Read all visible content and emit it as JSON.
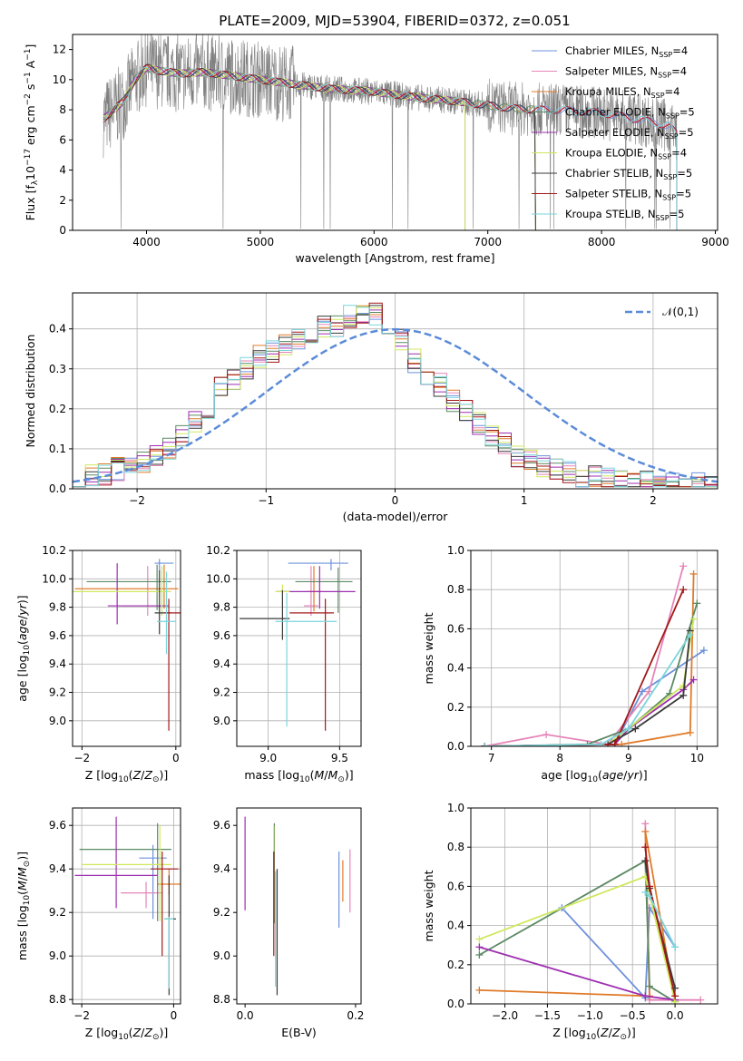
{
  "figure_title": "PLATE=2009, MJD=53904, FIBERID=0372, z=0.051",
  "models": [
    {
      "name": "Chabrier MILES",
      "nssp": "4",
      "color": "#6d90dc"
    },
    {
      "name": "Salpeter MILES",
      "nssp": "4",
      "color": "#e585b9"
    },
    {
      "name": "Kroupa MILES",
      "nssp": "4",
      "color": "#e07b2a"
    },
    {
      "name": "Chabrier ELODIE",
      "nssp": "5",
      "color": "#5c8a63"
    },
    {
      "name": "Salpeter ELODIE",
      "nssp": "5",
      "color": "#9d2fb0"
    },
    {
      "name": "Kroupa ELODIE",
      "nssp": "4",
      "color": "#cfe85e"
    },
    {
      "name": "Chabrier STELIB",
      "nssp": "5",
      "color": "#3a3a3a"
    },
    {
      "name": "Salpeter STELIB",
      "nssp": "5",
      "color": "#a31818"
    },
    {
      "name": "Kroupa STELIB",
      "nssp": "5",
      "color": "#7ad6dc"
    }
  ],
  "data_color": "#808080",
  "chart_data": [
    {
      "id": "spectrum",
      "type": "line",
      "title": "PLATE=2009, MJD=53904, FIBERID=0372, z=0.051",
      "xlabel": "wavelength [Angstrom, rest frame]",
      "ylabel": "Flux [f_λ 10^-17 erg cm^-2 s^-1 A^-1]",
      "xlim": [
        3350,
        9020
      ],
      "ylim": [
        0,
        13
      ],
      "xticks": [
        4000,
        5000,
        6000,
        7000,
        8000,
        9000
      ],
      "yticks": [
        0,
        2,
        4,
        6,
        8,
        10,
        12
      ],
      "grid": false,
      "legend": "top-right",
      "continuum": {
        "x": [
          3620,
          3700,
          3800,
          3900,
          4000,
          4100,
          4300,
          4500,
          4800,
          5000,
          5300,
          5600,
          6000,
          6400,
          6800,
          7000,
          7200,
          7420,
          7600,
          8000,
          8300,
          8500,
          8600,
          8660
        ],
        "y": [
          7.4,
          7.9,
          8.6,
          10.0,
          10.8,
          10.6,
          10.4,
          10.5,
          10.2,
          10.0,
          9.7,
          9.4,
          9.2,
          8.8,
          8.5,
          8.3,
          8.1,
          8.0,
          8.0,
          7.8,
          7.4,
          7.1,
          6.9,
          6.4
        ]
      },
      "model_end_wavelengths": [
        8660,
        8660,
        7420,
        7420,
        6800,
        6800,
        7420,
        8660,
        8660
      ]
    },
    {
      "id": "residuals",
      "type": "histogram",
      "xlabel": "(data-model)/error",
      "ylabel": "Normed distribution",
      "xlim": [
        -2.5,
        2.5
      ],
      "ylim": [
        0,
        0.49
      ],
      "xticks": [
        -2,
        -1,
        0,
        1,
        2
      ],
      "yticks": [
        0.0,
        0.1,
        0.2,
        0.3,
        0.4
      ],
      "grid": true,
      "legend": "top-right",
      "reference_curve": "𝒩(0,1)",
      "bin_width": 0.1,
      "envelope": [
        0.02,
        0.025,
        0.03,
        0.035,
        0.04,
        0.05,
        0.055,
        0.06,
        0.065,
        0.07,
        0.08,
        0.1,
        0.115,
        0.13,
        0.15,
        0.17,
        0.2,
        0.225,
        0.25,
        0.27,
        0.29,
        0.3,
        0.32,
        0.33,
        0.345,
        0.355,
        0.365,
        0.375,
        0.38,
        0.39,
        0.4,
        0.405,
        0.41,
        0.42,
        0.43,
        0.44,
        0.45,
        0.44,
        0.42,
        0.4,
        0.375,
        0.35,
        0.32,
        0.3,
        0.28,
        0.26,
        0.24,
        0.22,
        0.2,
        0.18,
        0.165,
        0.15,
        0.13,
        0.11,
        0.095,
        0.08,
        0.07,
        0.06,
        0.055,
        0.05,
        0.045,
        0.04,
        0.035,
        0.03,
        0.028,
        0.025,
        0.022,
        0.02,
        0.018,
        0.016,
        0.015,
        0.015,
        0.014,
        0.013,
        0.012,
        0.011,
        0.01,
        0.01,
        0.01,
        0.01
      ]
    },
    {
      "id": "age-vs-Z",
      "type": "errorbar",
      "xlabel": "Z [log10(Z/Z⊙)]",
      "ylabel": "age [log10(age/yr)]",
      "xlim": [
        -2.2,
        0.1
      ],
      "ylim": [
        8.82,
        10.2
      ],
      "xticks": [
        -2,
        0
      ],
      "yticks": [
        9.0,
        9.2,
        9.4,
        9.6,
        9.8,
        10.0,
        10.2
      ],
      "grid": true,
      "points": [
        {
          "x": -0.35,
          "y": 10.11,
          "xerr": [
            0.1,
            0.3
          ],
          "yerr": [
            0.05,
            0.03
          ]
        },
        {
          "x": -0.6,
          "y": 9.81,
          "xerr": [
            0.55,
            0.3
          ],
          "yerr": [
            0.07,
            0.28
          ]
        },
        {
          "x": -0.25,
          "y": 9.93,
          "xerr": [
            1.9,
            0.3
          ],
          "yerr": [
            0.14,
            0.17
          ]
        },
        {
          "x": -0.4,
          "y": 9.98,
          "xerr": [
            1.5,
            0.3
          ],
          "yerr": [
            0.2,
            0.12
          ]
        },
        {
          "x": -1.25,
          "y": 9.81,
          "xerr": [
            0.2,
            1.1
          ],
          "yerr": [
            0.13,
            0.3
          ]
        },
        {
          "x": -0.3,
          "y": 9.91,
          "xerr": [
            1.9,
            0.2
          ],
          "yerr": [
            0.17,
            0.18
          ]
        },
        {
          "x": -0.35,
          "y": 9.76,
          "xerr": [
            0.1,
            0.25
          ],
          "yerr": [
            0.15,
            0.3
          ]
        },
        {
          "x": -0.15,
          "y": 9.76,
          "xerr": [
            0.1,
            0.3
          ],
          "yerr": [
            0.83,
            0.1
          ]
        },
        {
          "x": -0.2,
          "y": 9.7,
          "xerr": [
            0.2,
            0.2
          ],
          "yerr": [
            0.23,
            0.35
          ]
        }
      ]
    },
    {
      "id": "age-vs-mass",
      "type": "errorbar",
      "xlabel": "mass [log10(M/M⊙)]",
      "ylabel": "",
      "xlim": [
        8.78,
        9.65
      ],
      "ylim": [
        8.82,
        10.2
      ],
      "xticks": [
        9.0,
        9.5
      ],
      "yticks": [
        9.0,
        9.2,
        9.4,
        9.6,
        9.8,
        10.0,
        10.2
      ],
      "grid": true,
      "points": [
        {
          "x": 9.44,
          "y": 10.11,
          "xerr": [
            0.3,
            0.12
          ],
          "yerr": [
            0.05,
            0.03
          ]
        },
        {
          "x": 9.3,
          "y": 9.81,
          "xerr": [
            0.05,
            0.05
          ],
          "yerr": [
            0.07,
            0.28
          ]
        },
        {
          "x": 9.32,
          "y": 9.91,
          "xerr": [
            0.05,
            0.06
          ],
          "yerr": [
            0.14,
            0.18
          ]
        },
        {
          "x": 9.49,
          "y": 9.98,
          "xerr": [
            0.3,
            0.1
          ],
          "yerr": [
            0.22,
            0.1
          ]
        },
        {
          "x": 9.36,
          "y": 9.91,
          "xerr": [
            0.3,
            0.25
          ],
          "yerr": [
            0.12,
            0.18
          ]
        },
        {
          "x": 9.1,
          "y": 9.91,
          "xerr": [
            0.05,
            0.05
          ],
          "yerr": [
            0.12,
            0.05
          ]
        },
        {
          "x": 9.1,
          "y": 9.72,
          "xerr": [
            0.3,
            0.05
          ],
          "yerr": [
            0.15,
            0.2
          ]
        },
        {
          "x": 9.4,
          "y": 9.76,
          "xerr": [
            0.25,
            0.06
          ],
          "yerr": [
            0.83,
            0.1
          ]
        },
        {
          "x": 9.13,
          "y": 9.7,
          "xerr": [
            0.08,
            0.35
          ],
          "yerr": [
            0.74,
            0.2
          ]
        }
      ]
    },
    {
      "id": "weight-vs-age",
      "type": "line",
      "xlabel": "age [log10(age/yr)]",
      "ylabel": "mass weight",
      "xlim": [
        6.7,
        10.3
      ],
      "ylim": [
        0,
        1
      ],
      "xticks": [
        7,
        8,
        9,
        10
      ],
      "yticks": [
        0.0,
        0.2,
        0.4,
        0.6,
        0.8,
        1.0
      ],
      "grid": true,
      "series": [
        {
          "x": [
            6.9,
            8.8,
            9.2,
            10.1
          ],
          "y": [
            0.0,
            0.01,
            0.28,
            0.49
          ]
        },
        {
          "x": [
            6.9,
            7.8,
            8.7,
            9.3,
            9.8
          ],
          "y": [
            0.0,
            0.06,
            0.01,
            0.28,
            0.92
          ]
        },
        {
          "x": [
            6.9,
            8.9,
            9.9,
            9.95
          ],
          "y": [
            0.0,
            0.01,
            0.07,
            0.88
          ]
        },
        {
          "x": [
            6.9,
            8.4,
            9.0,
            9.6,
            10.0
          ],
          "y": [
            0.0,
            0.01,
            0.09,
            0.27,
            0.73
          ]
        },
        {
          "x": [
            6.9,
            8.8,
            9.0,
            9.8,
            9.95
          ],
          "y": [
            0.0,
            0.01,
            0.09,
            0.29,
            0.34
          ]
        },
        {
          "x": [
            6.9,
            8.7,
            9.8,
            9.95
          ],
          "y": [
            0.0,
            0.01,
            0.31,
            0.65
          ]
        },
        {
          "x": [
            6.9,
            8.7,
            9.1,
            9.8,
            9.9
          ],
          "y": [
            0.0,
            0.01,
            0.09,
            0.26,
            0.59
          ]
        },
        {
          "x": [
            6.9,
            8.8,
            9.8
          ],
          "y": [
            0.0,
            0.01,
            0.8
          ]
        },
        {
          "x": [
            6.9,
            8.6,
            9.0,
            9.9
          ],
          "y": [
            0.0,
            0.01,
            0.09,
            0.57
          ]
        }
      ]
    },
    {
      "id": "mass-vs-Z",
      "type": "errorbar",
      "xlabel": "Z [log10(Z/Z⊙)]",
      "ylabel": "mass [log10(M/M⊙)]",
      "xlim": [
        -2.2,
        0.15
      ],
      "ylim": [
        8.78,
        9.68
      ],
      "xticks": [
        -2,
        0
      ],
      "yticks": [
        8.8,
        9.0,
        9.2,
        9.4,
        9.6
      ],
      "grid": true,
      "points": [
        {
          "x": -0.45,
          "y": 9.45,
          "xerr": [
            0.3,
            0.3
          ],
          "yerr": [
            0.28,
            0.06
          ]
        },
        {
          "x": -0.6,
          "y": 9.29,
          "xerr": [
            0.55,
            0.35
          ],
          "yerr": [
            0.07,
            0.05
          ]
        },
        {
          "x": -0.1,
          "y": 9.33,
          "xerr": [
            0.25,
            0.25
          ],
          "yerr": [
            0.05,
            0.07
          ]
        },
        {
          "x": -0.35,
          "y": 9.49,
          "xerr": [
            1.7,
            0.3
          ],
          "yerr": [
            0.33,
            0.12
          ]
        },
        {
          "x": -1.25,
          "y": 9.37,
          "xerr": [
            0.9,
            0.9
          ],
          "yerr": [
            0.15,
            0.27
          ]
        },
        {
          "x": -0.3,
          "y": 9.42,
          "xerr": [
            1.7,
            0.25
          ],
          "yerr": [
            0.26,
            0.18
          ]
        },
        {
          "x": -0.1,
          "y": 9.17,
          "xerr": [
            0.1,
            0.15
          ],
          "yerr": [
            0.35,
            0.2
          ]
        },
        {
          "x": -0.25,
          "y": 9.4,
          "xerr": [
            0.25,
            0.35
          ],
          "yerr": [
            0.4,
            0.08
          ]
        },
        {
          "x": -0.1,
          "y": 9.17,
          "xerr": [
            0.1,
            0.1
          ],
          "yerr": [
            0.32,
            0.01
          ]
        }
      ]
    },
    {
      "id": "mass-vs-EBV",
      "type": "errorbar",
      "xlabel": "E(B-V)",
      "ylabel": "",
      "xlim": [
        -0.015,
        0.21
      ],
      "ylim": [
        8.78,
        9.68
      ],
      "xticks": [
        0.0,
        0.2
      ],
      "yticks": [
        8.8,
        9.0,
        9.2,
        9.4,
        9.6
      ],
      "grid": false,
      "points": [
        {
          "x": 0.17,
          "y": 9.36,
          "xerr": [
            0,
            0
          ],
          "yerr": [
            0.23,
            0.12
          ]
        },
        {
          "x": 0.19,
          "y": 9.29,
          "xerr": [
            0,
            0
          ],
          "yerr": [
            0.09,
            0.2
          ]
        },
        {
          "x": 0.177,
          "y": 9.33,
          "xerr": [
            0,
            0
          ],
          "yerr": [
            0.08,
            0.11
          ]
        },
        {
          "x": 0.053,
          "y": 9.45,
          "xerr": [
            0,
            0
          ],
          "yerr": [
            0.3,
            0.16
          ]
        },
        {
          "x": 0.0,
          "y": 9.42,
          "xerr": [
            0,
            0
          ],
          "yerr": [
            0.21,
            0.22
          ]
        },
        {
          "x": 0.052,
          "y": 9.35,
          "xerr": [
            0,
            0
          ],
          "yerr": [
            0.2,
            0.25
          ]
        },
        {
          "x": 0.058,
          "y": 9.17,
          "xerr": [
            0,
            0
          ],
          "yerr": [
            0.35,
            0.23
          ]
        },
        {
          "x": 0.052,
          "y": 9.23,
          "xerr": [
            0,
            0
          ],
          "yerr": [
            0.23,
            0.25
          ]
        },
        {
          "x": 0.055,
          "y": 9.17,
          "xerr": [
            0,
            0
          ],
          "yerr": [
            0.31,
            0.22
          ]
        }
      ]
    },
    {
      "id": "weight-vs-Z",
      "type": "line",
      "xlabel": "Z [log10(Z/Z⊙)]",
      "ylabel": "mass weight",
      "xlim": [
        -2.4,
        0.5
      ],
      "ylim": [
        0,
        1
      ],
      "xticks": [
        -2.0,
        -1.5,
        -1.0,
        -0.5,
        0.0
      ],
      "yticks": [
        0.0,
        0.2,
        0.4,
        0.6,
        0.8,
        1.0
      ],
      "grid": true,
      "series": [
        {
          "x": [
            -1.33,
            -0.35,
            -0.3,
            0.0
          ],
          "y": [
            0.49,
            0.03,
            0.49,
            0.29
          ]
        },
        {
          "x": [
            -0.35,
            -0.3,
            0.3
          ],
          "y": [
            0.92,
            0.02,
            0.02
          ]
        },
        {
          "x": [
            -2.3,
            -0.3,
            -0.35,
            0.0
          ],
          "y": [
            0.07,
            0.04,
            0.88,
            0.01
          ]
        },
        {
          "x": [
            -2.3,
            -0.35,
            -0.3,
            0.0
          ],
          "y": [
            0.25,
            0.73,
            0.09,
            0.01
          ]
        },
        {
          "x": [
            -2.3,
            -0.35,
            0.0
          ],
          "y": [
            0.29,
            0.04,
            0.02
          ]
        },
        {
          "x": [
            -2.3,
            -0.35,
            0.0
          ],
          "y": [
            0.33,
            0.65,
            0.01
          ]
        },
        {
          "x": [
            -0.35,
            -0.3,
            0.0
          ],
          "y": [
            0.73,
            0.59,
            0.08
          ]
        },
        {
          "x": [
            -0.35,
            -0.3,
            0.0
          ],
          "y": [
            0.8,
            0.6,
            0.04
          ]
        },
        {
          "x": [
            -0.35,
            -0.3,
            0.0
          ],
          "y": [
            0.57,
            0.55,
            0.29
          ]
        }
      ]
    }
  ]
}
